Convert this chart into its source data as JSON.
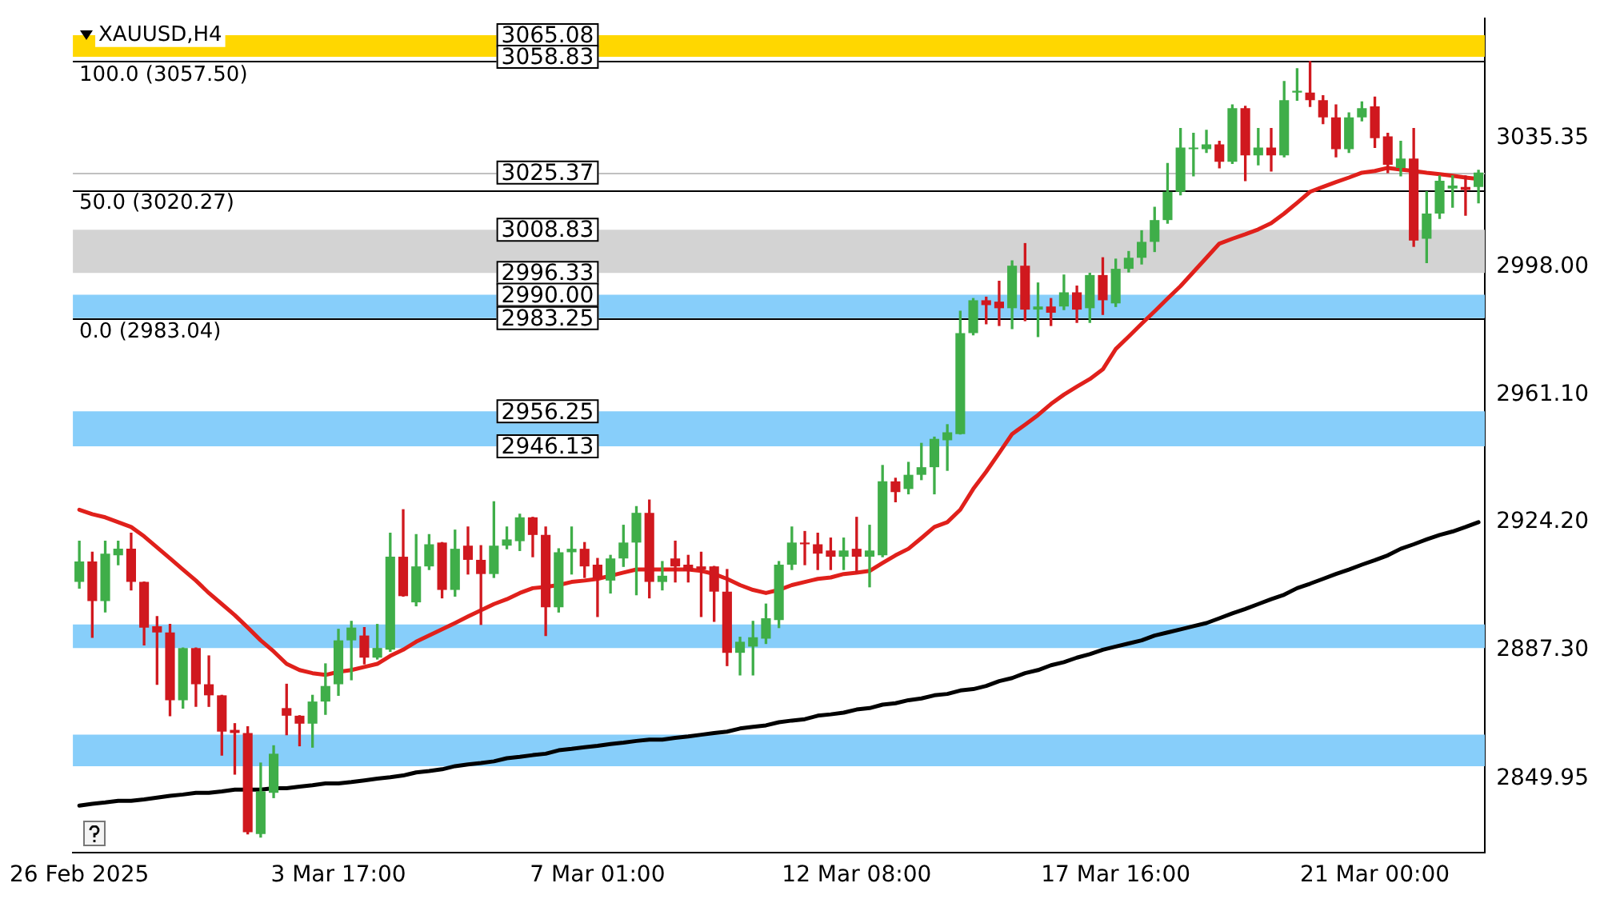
{
  "chart_data": {
    "type": "candlestick",
    "title": "XAUUSD,H4",
    "categories": [
      "26 Feb 2025",
      null,
      null,
      null,
      null,
      null,
      null,
      null,
      null,
      null,
      null,
      null,
      null,
      null,
      null,
      null,
      null,
      null,
      null,
      null,
      "3 Mar 17:00",
      null,
      null,
      null,
      null,
      null,
      null,
      null,
      null,
      null,
      null,
      null,
      null,
      null,
      null,
      null,
      null,
      null,
      null,
      null,
      "7 Mar 01:00",
      null,
      null,
      null,
      null,
      null,
      null,
      null,
      null,
      null,
      null,
      null,
      null,
      null,
      null,
      null,
      null,
      null,
      null,
      null,
      "12 Mar 08:00",
      null,
      null,
      null,
      null,
      null,
      null,
      null,
      null,
      null,
      null,
      null,
      null,
      null,
      null,
      null,
      null,
      null,
      null,
      null,
      "17 Mar 16:00",
      null,
      null,
      null,
      null,
      null,
      null,
      null,
      null,
      null,
      null,
      null,
      null,
      null,
      null,
      null,
      null,
      null,
      null,
      null,
      "21 Mar 00:00",
      null,
      null,
      null,
      null,
      null,
      null,
      null,
      null
    ],
    "ohlc": [
      [
        2906.9,
        2918.7,
        2905.1,
        2912.8
      ],
      [
        2912.8,
        2915.5,
        2890.9,
        2901.4
      ],
      [
        2901.4,
        2918.7,
        2898.2,
        2915.1
      ],
      [
        2914.6,
        2918.7,
        2911.9,
        2916.5
      ],
      [
        2916.5,
        2921.0,
        2904.6,
        2906.9
      ],
      [
        2906.9,
        2906.9,
        2888.7,
        2893.7
      ],
      [
        2894.1,
        2896.9,
        2877.3,
        2892.3
      ],
      [
        2892.3,
        2894.6,
        2868.2,
        2872.7
      ],
      [
        2872.7,
        2887.8,
        2870.4,
        2887.8
      ],
      [
        2887.8,
        2887.8,
        2870.9,
        2877.3
      ],
      [
        2877.3,
        2885.5,
        2870.9,
        2874.1
      ],
      [
        2874.1,
        2874.1,
        2856.8,
        2863.6
      ],
      [
        2864.1,
        2865.9,
        2851.3,
        2863.2
      ],
      [
        2863.2,
        2865.0,
        2834.0,
        2834.5
      ],
      [
        2834.0,
        2854.5,
        2833.1,
        2846.3
      ],
      [
        2845.9,
        2859.5,
        2844.5,
        2857.2
      ],
      [
        2870.4,
        2877.3,
        2862.7,
        2868.2
      ],
      [
        2868.2,
        2868.2,
        2859.5,
        2865.9
      ],
      [
        2865.9,
        2874.1,
        2859.1,
        2872.3
      ],
      [
        2872.3,
        2883.2,
        2868.6,
        2876.8
      ],
      [
        2877.3,
        2893.2,
        2874.1,
        2890.0
      ],
      [
        2890.0,
        2895.5,
        2878.6,
        2893.7
      ],
      [
        2891.4,
        2893.7,
        2883.2,
        2885.0
      ],
      [
        2885.0,
        2894.6,
        2884.6,
        2887.8
      ],
      [
        2887.3,
        2921.0,
        2886.8,
        2914.2
      ],
      [
        2914.2,
        2927.8,
        2902.8,
        2902.8
      ],
      [
        2901.0,
        2920.6,
        2900.0,
        2911.4
      ],
      [
        2911.4,
        2920.6,
        2910.5,
        2917.8
      ],
      [
        2918.3,
        2918.3,
        2902.3,
        2904.6
      ],
      [
        2904.6,
        2921.9,
        2902.8,
        2916.5
      ],
      [
        2917.4,
        2922.8,
        2909.2,
        2913.3
      ],
      [
        2913.3,
        2917.4,
        2894.6,
        2909.2
      ],
      [
        2909.2,
        2930.1,
        2908.2,
        2917.4
      ],
      [
        2917.4,
        2922.8,
        2916.5,
        2919.2
      ],
      [
        2918.7,
        2926.5,
        2916.0,
        2925.6
      ],
      [
        2925.6,
        2925.6,
        2914.2,
        2920.5
      ],
      [
        2920.5,
        2922.8,
        2891.4,
        2899.6
      ],
      [
        2899.6,
        2916.5,
        2898.2,
        2915.5
      ],
      [
        2915.5,
        2922.8,
        2909.2,
        2916.5
      ],
      [
        2916.5,
        2918.3,
        2908.2,
        2911.4
      ],
      [
        2911.9,
        2913.7,
        2896.9,
        2907.8
      ],
      [
        2907.3,
        2914.6,
        2903.7,
        2913.7
      ],
      [
        2913.7,
        2923.3,
        2911.4,
        2918.3
      ],
      [
        2918.3,
        2928.7,
        2903.2,
        2926.9
      ],
      [
        2926.9,
        2930.6,
        2902.3,
        2906.9
      ],
      [
        2906.9,
        2912.8,
        2904.6,
        2908.7
      ],
      [
        2913.7,
        2918.7,
        2906.9,
        2911.4
      ],
      [
        2911.9,
        2914.6,
        2906.9,
        2910.1
      ],
      [
        2911.4,
        2915.5,
        2896.9,
        2910.5
      ],
      [
        2911.4,
        2911.4,
        2895.5,
        2904.1
      ],
      [
        2904.1,
        2910.5,
        2882.7,
        2886.4
      ],
      [
        2886.4,
        2890.9,
        2880.0,
        2889.6
      ],
      [
        2888.2,
        2895.5,
        2880.0,
        2890.9
      ],
      [
        2890.5,
        2900.5,
        2889.1,
        2896.4
      ],
      [
        2895.9,
        2912.8,
        2893.7,
        2911.9
      ],
      [
        2911.9,
        2922.8,
        2910.5,
        2918.3
      ],
      [
        2918.3,
        2921.5,
        2911.9,
        2917.8
      ],
      [
        2917.8,
        2921.0,
        2910.5,
        2915.1
      ],
      [
        2916.0,
        2919.6,
        2910.5,
        2914.2
      ],
      [
        2914.2,
        2919.6,
        2910.5,
        2916.0
      ],
      [
        2916.5,
        2925.6,
        2909.6,
        2914.2
      ],
      [
        2914.2,
        2923.3,
        2905.5,
        2916.0
      ],
      [
        2914.6,
        2940.6,
        2914.2,
        2936.0
      ],
      [
        2936.0,
        2936.9,
        2930.1,
        2932.9
      ],
      [
        2933.8,
        2941.5,
        2932.4,
        2937.9
      ],
      [
        2937.9,
        2947.0,
        2936.5,
        2940.1
      ],
      [
        2940.1,
        2948.8,
        2932.4,
        2948.3
      ],
      [
        2947.9,
        2952.4,
        2939.2,
        2950.2
      ],
      [
        2949.7,
        2985.2,
        2949.7,
        2978.9
      ],
      [
        2978.9,
        2988.9,
        2978.4,
        2988.4
      ],
      [
        2988.4,
        2989.3,
        2981.6,
        2987.0
      ],
      [
        2988.0,
        2993.9,
        2981.1,
        2986.1
      ],
      [
        2986.1,
        2999.8,
        2980.2,
        2998.4
      ],
      [
        2998.4,
        3004.8,
        2982.5,
        2985.7
      ],
      [
        2985.7,
        2993.4,
        2977.9,
        2986.6
      ],
      [
        2986.6,
        2988.9,
        2981.1,
        2984.8
      ],
      [
        2986.6,
        2995.7,
        2985.7,
        2990.7
      ],
      [
        2990.7,
        2992.5,
        2982.0,
        2985.7
      ],
      [
        2986.1,
        2996.2,
        2982.0,
        2995.7
      ],
      [
        2995.7,
        3000.7,
        2984.3,
        2988.4
      ],
      [
        2987.5,
        3000.3,
        2986.6,
        2997.5
      ],
      [
        2997.5,
        3002.5,
        2996.6,
        3000.7
      ],
      [
        3000.7,
        3008.5,
        2998.9,
        3005.3
      ],
      [
        3005.3,
        3015.3,
        3002.5,
        3011.6
      ],
      [
        3011.6,
        3028.0,
        3010.7,
        3019.8
      ],
      [
        3019.8,
        3038.1,
        3018.9,
        3032.6
      ],
      [
        3032.1,
        3036.7,
        3024.4,
        3032.6
      ],
      [
        3032.1,
        3037.6,
        3031.2,
        3033.5
      ],
      [
        3033.5,
        3034.4,
        3026.7,
        3028.5
      ],
      [
        3028.5,
        3044.9,
        3028.0,
        3044.0
      ],
      [
        3044.0,
        3044.5,
        3023.0,
        3030.3
      ],
      [
        3030.3,
        3038.1,
        3027.6,
        3032.6
      ],
      [
        3032.6,
        3038.1,
        3025.8,
        3030.3
      ],
      [
        3030.3,
        3051.7,
        3029.9,
        3046.3
      ],
      [
        3048.5,
        3055.4,
        3046.3,
        3049.0
      ],
      [
        3048.5,
        3057.5,
        3044.5,
        3046.3
      ],
      [
        3046.3,
        3047.6,
        3039.5,
        3041.3
      ],
      [
        3041.3,
        3044.9,
        3029.9,
        3032.1
      ],
      [
        3032.1,
        3042.6,
        3031.2,
        3041.3
      ],
      [
        3041.3,
        3045.8,
        3040.3,
        3044.0
      ],
      [
        3044.5,
        3047.2,
        3032.6,
        3035.3
      ],
      [
        3035.8,
        3036.7,
        3025.3,
        3027.6
      ],
      [
        3026.7,
        3034.4,
        3024.4,
        3029.4
      ],
      [
        3029.4,
        3038.1,
        3004.0,
        3005.7
      ],
      [
        3006.2,
        3019.8,
        2999.3,
        3013.5
      ],
      [
        3013.5,
        3024.4,
        3012.1,
        3023.0
      ],
      [
        3020.7,
        3024.4,
        3015.3,
        3021.6
      ],
      [
        3021.2,
        3024.4,
        3013.0,
        3020.3
      ],
      [
        3021.2,
        3026.0,
        3016.6,
        3025.37
      ]
    ],
    "colors": [
      "#3fae49",
      "#d0181e",
      "#3fae49",
      "#3fae49",
      "#d0181e",
      "#d0181e",
      "#d0181e",
      "#d0181e",
      "#3fae49",
      "#d0181e",
      "#d0181e",
      "#d0181e",
      "#d0181e",
      "#d0181e",
      "#3fae49",
      "#3fae49",
      "#d0181e",
      "#d0181e",
      "#3fae49",
      "#3fae49",
      "#3fae49",
      "#3fae49",
      "#d0181e",
      "#3fae49",
      "#3fae49",
      "#d0181e",
      "#3fae49",
      "#3fae49",
      "#d0181e",
      "#3fae49",
      "#d0181e",
      "#d0181e",
      "#3fae49",
      "#3fae49",
      "#3fae49",
      "#d0181e",
      "#d0181e",
      "#3fae49",
      "#3fae49",
      "#d0181e",
      "#d0181e",
      "#3fae49",
      "#3fae49",
      "#3fae49",
      "#d0181e",
      "#3fae49",
      "#d0181e",
      "#d0181e",
      "#d0181e",
      "#d0181e",
      "#d0181e",
      "#3fae49",
      "#3fae49",
      "#3fae49",
      "#3fae49",
      "#3fae49",
      "#d0181e",
      "#d0181e",
      "#d0181e",
      "#3fae49",
      "#d0181e",
      "#3fae49",
      "#3fae49",
      "#d0181e",
      "#3fae49",
      "#3fae49",
      "#3fae49",
      "#3fae49",
      "#3fae49",
      "#3fae49",
      "#d0181e",
      "#d0181e",
      "#3fae49",
      "#d0181e",
      "#3fae49",
      "#d0181e",
      "#3fae49",
      "#d0181e",
      "#3fae49",
      "#d0181e",
      "#3fae49",
      "#3fae49",
      "#3fae49",
      "#3fae49",
      "#3fae49",
      "#3fae49",
      "#3fae49",
      "#3fae49",
      "#d0181e",
      "#3fae49",
      "#d0181e",
      "#3fae49",
      "#d0181e",
      "#3fae49",
      "#3fae49",
      "#d0181e",
      "#d0181e",
      "#d0181e",
      "#3fae49",
      "#3fae49",
      "#d0181e",
      "#d0181e",
      "#3fae49",
      "#d0181e",
      "#3fae49",
      "#3fae49",
      "#3fae49",
      "#d0181e",
      "#3fae49"
    ],
    "series": [
      {
        "type": "line",
        "color": "#e0201b",
        "values": [
          2927.8,
          2926.5,
          2925.6,
          2924.2,
          2922.8,
          2920.1,
          2916.9,
          2913.7,
          2910.5,
          2907.3,
          2903.7,
          2900.5,
          2897.3,
          2893.7,
          2890.0,
          2886.8,
          2883.2,
          2881.4,
          2880.5,
          2880.0,
          2880.9,
          2881.4,
          2882.3,
          2883.2,
          2885.5,
          2887.3,
          2889.6,
          2891.4,
          2893.2,
          2895.0,
          2896.9,
          2898.7,
          2900.5,
          2901.9,
          2903.7,
          2905.1,
          2905.5,
          2906.0,
          2906.9,
          2907.3,
          2907.8,
          2908.7,
          2909.6,
          2910.5,
          2910.5,
          2910.5,
          2910.5,
          2910.5,
          2910.1,
          2909.2,
          2907.8,
          2906.0,
          2904.6,
          2903.7,
          2904.6,
          2906.0,
          2906.9,
          2907.8,
          2908.2,
          2909.2,
          2909.6,
          2910.1,
          2912.4,
          2914.6,
          2916.5,
          2919.6,
          2922.8,
          2924.2,
          2927.8,
          2933.8,
          2938.8,
          2944.2,
          2949.7,
          2952.4,
          2955.2,
          2958.4,
          2961.1,
          2963.4,
          2965.6,
          2968.4,
          2974.3,
          2977.9,
          2981.6,
          2985.2,
          2988.9,
          2992.5,
          2996.6,
          3000.7,
          3004.8,
          3006.2,
          3007.5,
          3008.9,
          3010.7,
          3013.5,
          3016.6,
          3019.8,
          3021.2,
          3022.6,
          3023.9,
          3025.3,
          3025.8,
          3026.7,
          3026.2,
          3025.8,
          3025.3,
          3024.9,
          3024.4,
          3023.9,
          3023.5
        ]
      },
      {
        "type": "line",
        "color": "#000000",
        "values": [
          2842.2,
          2842.7,
          2843.1,
          2843.6,
          2843.6,
          2844.0,
          2844.5,
          2845.0,
          2845.4,
          2845.9,
          2845.9,
          2846.3,
          2846.8,
          2846.8,
          2846.8,
          2847.2,
          2847.2,
          2847.7,
          2848.1,
          2848.6,
          2848.6,
          2849.0,
          2849.5,
          2850.0,
          2850.4,
          2850.9,
          2851.8,
          2852.2,
          2852.7,
          2853.6,
          2854.1,
          2854.5,
          2855.0,
          2855.9,
          2856.3,
          2856.8,
          2857.2,
          2858.2,
          2858.6,
          2859.1,
          2859.5,
          2860.0,
          2860.4,
          2860.9,
          2861.3,
          2861.3,
          2861.8,
          2862.2,
          2862.7,
          2863.2,
          2863.6,
          2864.5,
          2865.0,
          2865.4,
          2866.3,
          2866.8,
          2867.2,
          2868.2,
          2868.6,
          2869.1,
          2870.0,
          2870.4,
          2871.4,
          2871.8,
          2872.7,
          2873.2,
          2874.1,
          2874.5,
          2875.5,
          2875.9,
          2876.8,
          2878.2,
          2879.1,
          2880.5,
          2881.4,
          2882.8,
          2883.7,
          2885.0,
          2886.0,
          2887.3,
          2888.2,
          2889.1,
          2890.0,
          2891.4,
          2892.3,
          2893.2,
          2894.1,
          2895.0,
          2896.4,
          2897.8,
          2899.1,
          2900.5,
          2901.9,
          2903.2,
          2905.1,
          2906.4,
          2907.8,
          2909.2,
          2910.5,
          2911.9,
          2913.2,
          2914.6,
          2916.5,
          2917.8,
          2919.2,
          2920.5,
          2921.5,
          2922.8,
          2924.2
        ]
      }
    ],
    "ylim": [
      2828.5,
      3070.0
    ],
    "yticks": [
      2849.95,
      {
        "value": 2887.3,
        "label": "2887.30"
      },
      {
        "value": 2924.2,
        "label": "2924.20"
      },
      {
        "value": 2961.1,
        "label": "2961.10"
      },
      {
        "value": 2998.0,
        "label": "2998.00"
      },
      3035.35
    ],
    "bands": [
      {
        "axis": "y",
        "from": 3058.83,
        "to": 3065.08,
        "color": "#ffd700"
      },
      {
        "axis": "y",
        "from": 2996.33,
        "to": 3008.83,
        "color": "#d3d3d3"
      },
      {
        "axis": "y",
        "from": 2983.25,
        "to": 2990.0,
        "color": "#87cefa"
      },
      {
        "axis": "y",
        "from": 2946.13,
        "to": 2956.25,
        "color": "#87cefa"
      },
      {
        "axis": "y",
        "from": 2887.8,
        "to": 2894.6,
        "color": "#87cefa"
      },
      {
        "axis": "y",
        "from": 2853.6,
        "to": 2862.7,
        "color": "#87cefa"
      }
    ],
    "ref_lines": [
      {
        "axis": "y",
        "value": 3057.5,
        "label": "100.0 (3057.50)",
        "color": "#000000"
      },
      {
        "axis": "y",
        "value": 3020.27,
        "label": "50.0 (3020.27)",
        "color": "#000000"
      },
      {
        "axis": "y",
        "value": 2983.04,
        "label": "0.0 (2983.04)",
        "color": "#000000"
      },
      {
        "axis": "y",
        "value": 3025.37,
        "color": "#c0c0c0"
      }
    ],
    "annotations": [
      {
        "text": "3065.08",
        "y": 3065.08
      },
      {
        "text": "3058.83",
        "y": 3058.83
      },
      {
        "text": "3008.83",
        "y": 3008.83
      },
      {
        "text": "2996.33",
        "y": 2996.33
      },
      {
        "text": "2990.00",
        "y": 2990.0
      },
      {
        "text": "2983.25",
        "y": 2983.25
      },
      {
        "text": "2956.25",
        "y": 2956.25
      },
      {
        "text": "2946.13",
        "y": 2946.13
      },
      {
        "text": "3025.37",
        "y": 3025.37
      }
    ]
  }
}
